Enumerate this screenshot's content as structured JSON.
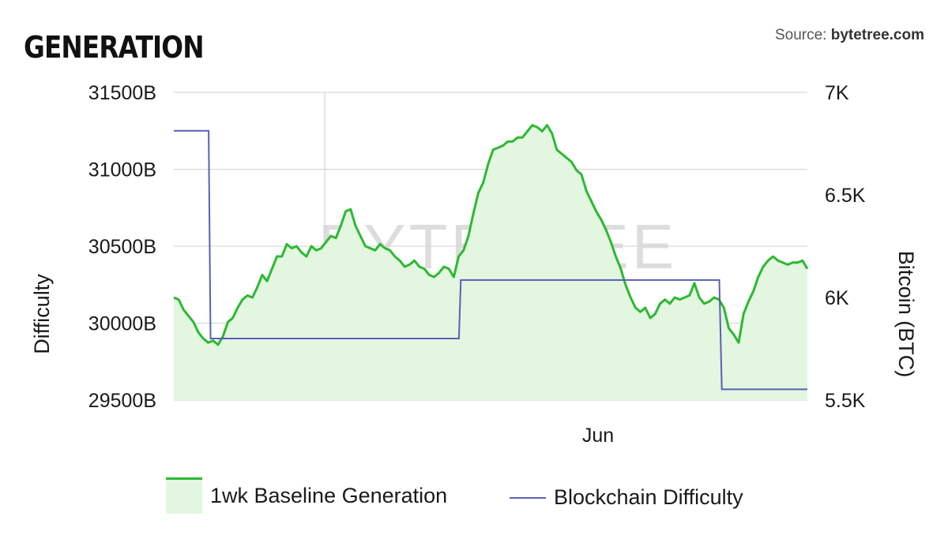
{
  "header": {
    "title": "GENERATION",
    "source_prefix": "Source: ",
    "source_name": "bytetree.com"
  },
  "watermark": "BYTETREE",
  "chart_data": {
    "type": "line",
    "x_tick_labels": [
      "Jun"
    ],
    "y_left": {
      "label": "Difficulty",
      "ticks": [
        "31500B",
        "31000B",
        "30500B",
        "30000B",
        "29500B"
      ],
      "range": [
        29500,
        31500
      ]
    },
    "y_right": {
      "label": "Bitcoin (BTC)",
      "ticks": [
        "7K",
        "6.5K",
        "6K",
        "5.5K"
      ],
      "range": [
        5500,
        7000
      ]
    },
    "grid": true,
    "legend_position": "bottom",
    "colors": {
      "generation": "#2db832",
      "generation_fill": "#e2f6e0",
      "difficulty": "#5b5fb5"
    },
    "series": [
      {
        "name": "1wk Baseline Generation",
        "axis": "right",
        "kind": "area",
        "values": [
          6000,
          5990,
          5940,
          5910,
          5880,
          5830,
          5800,
          5780,
          5790,
          5770,
          5810,
          5880,
          5900,
          5950,
          5990,
          6010,
          6000,
          6050,
          6110,
          6080,
          6140,
          6200,
          6200,
          6260,
          6240,
          6250,
          6220,
          6200,
          6250,
          6230,
          6240,
          6270,
          6300,
          6290,
          6350,
          6420,
          6430,
          6350,
          6300,
          6250,
          6240,
          6230,
          6260,
          6240,
          6230,
          6200,
          6180,
          6150,
          6160,
          6180,
          6150,
          6140,
          6110,
          6100,
          6120,
          6150,
          6140,
          6100,
          6200,
          6230,
          6300,
          6410,
          6510,
          6560,
          6650,
          6720,
          6730,
          6740,
          6760,
          6760,
          6780,
          6780,
          6810,
          6840,
          6830,
          6810,
          6840,
          6800,
          6720,
          6700,
          6680,
          6660,
          6620,
          6600,
          6520,
          6470,
          6420,
          6380,
          6330,
          6270,
          6200,
          6140,
          6060,
          6000,
          5950,
          5930,
          5950,
          5900,
          5920,
          5970,
          5990,
          5970,
          6000,
          5990,
          6000,
          6010,
          6070,
          6000,
          5970,
          5980,
          6000,
          5990,
          5950,
          5850,
          5820,
          5780,
          5920,
          5980,
          6030,
          6100,
          6150,
          6180,
          6200,
          6180,
          6170,
          6160,
          6170,
          6170,
          6180,
          6140
        ]
      },
      {
        "name": "Blockchain Difficulty",
        "axis": "left",
        "kind": "step",
        "values": [
          [
            0,
            31250
          ],
          [
            0.055,
            31250
          ],
          [
            0.058,
            29900
          ],
          [
            0.45,
            29900
          ],
          [
            0.453,
            30280
          ],
          [
            0.861,
            30280
          ],
          [
            0.865,
            29570
          ],
          [
            1,
            29570
          ]
        ]
      }
    ]
  },
  "legend": {
    "items": [
      {
        "label": "1wk Baseline Generation"
      },
      {
        "label": "Blockchain Difficulty"
      }
    ]
  }
}
